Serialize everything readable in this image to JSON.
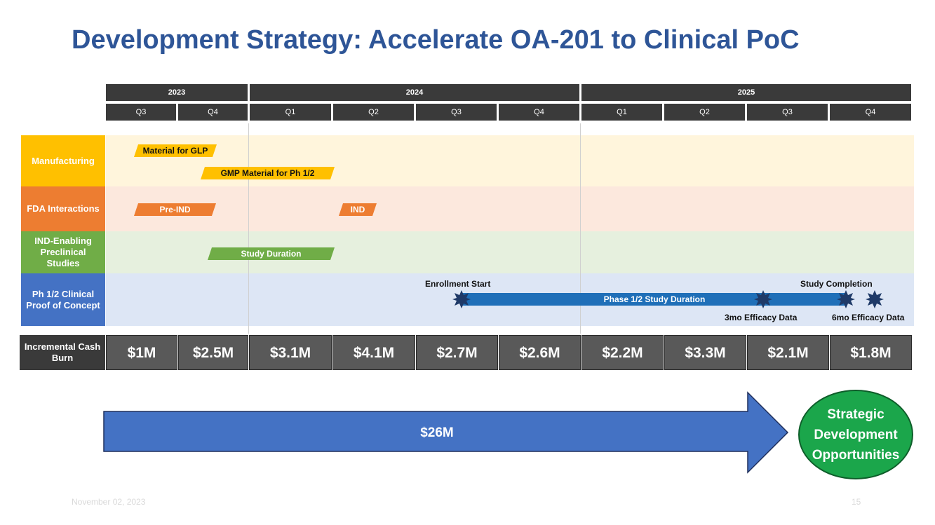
{
  "title": "Development Strategy: Accelerate OA-201 to Clinical PoC",
  "timeline": {
    "years": [
      "2023",
      "2024",
      "2025"
    ],
    "quarters": [
      "Q3",
      "Q4",
      "Q1",
      "Q2",
      "Q3",
      "Q4",
      "Q1",
      "Q2",
      "Q3",
      "Q4"
    ]
  },
  "rows": {
    "manufacturing": "Manufacturing",
    "fda": "FDA Interactions",
    "ind_enabling": "IND-Enabling Preclinical Studies",
    "clinical": "Ph 1/2 Clinical Proof of Concept"
  },
  "bars": {
    "material_glp": "Material for GLP",
    "gmp_material": "GMP Material for Ph 1/2",
    "pre_ind": "Pre-IND",
    "ind": "IND",
    "study_duration": "Study Duration",
    "phase_study": "Phase 1/2 Study Duration"
  },
  "annotations": {
    "enrollment_start": "Enrollment Start",
    "study_completion": "Study Completion",
    "efficacy_3mo": "3mo Efficacy Data",
    "efficacy_6mo": "6mo Efficacy Data"
  },
  "burn": {
    "label": "Incremental Cash Burn",
    "values": [
      "$1M",
      "$2.5M",
      "$3.1M",
      "$4.1M",
      "$2.7M",
      "$2.6M",
      "$2.2M",
      "$3.3M",
      "$2.1M",
      "$1.8M"
    ]
  },
  "total": "$26M",
  "outcome": "Strategic Development Opportunities",
  "footer": {
    "date": "November 02, 2023",
    "page": "15"
  },
  "colors": {
    "title": "#2E5597",
    "manufacturing": "#FFC000",
    "fda": "#ED7D31",
    "ind_enabling": "#70AD47",
    "clinical": "#4472C4",
    "arrow": "#4472C4",
    "circle": "#1BA64B",
    "milestone": "#1F3A68"
  }
}
